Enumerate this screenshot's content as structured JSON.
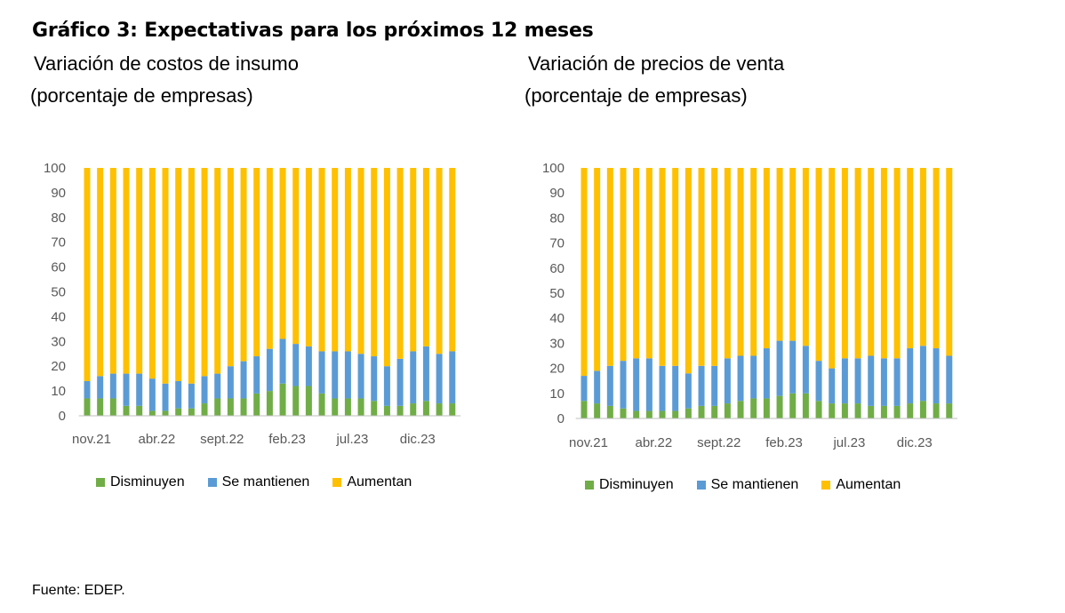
{
  "figure": {
    "title": "Gráfico 3: Expectativas para los próximos 12 meses",
    "source": "Fuente: EDEP."
  },
  "colors": {
    "disminuyen": "#70ad47",
    "se_mantienen": "#5b9bd5",
    "aumentan": "#ffc000",
    "axis": "#bfbfbf"
  },
  "chart_data": [
    {
      "type": "bar",
      "stacked": true,
      "title_line1": "Variación de costos de insumo",
      "title_line2": "(porcentaje de empresas)",
      "xlabel": "",
      "ylabel": "",
      "ylim": [
        0,
        100
      ],
      "yticks": [
        "0",
        "10",
        "20",
        "30",
        "40",
        "50",
        "60",
        "70",
        "80",
        "90",
        "100"
      ],
      "xtick_labels": [
        {
          "index": 0,
          "label": "nov.21"
        },
        {
          "index": 5,
          "label": "abr.22"
        },
        {
          "index": 10,
          "label": "sept.22"
        },
        {
          "index": 15,
          "label": "feb.23"
        },
        {
          "index": 20,
          "label": "jul.23"
        },
        {
          "index": 25,
          "label": "dic.23"
        }
      ],
      "legend": "bottom",
      "series": [
        {
          "name": "Disminuyen",
          "values": [
            7,
            7,
            7,
            4,
            4,
            2,
            2,
            3,
            3,
            5,
            7,
            7,
            7,
            9,
            10,
            13,
            12,
            12,
            9,
            7,
            7,
            7,
            6,
            4,
            4,
            5,
            6,
            5,
            5
          ]
        },
        {
          "name": "Se mantienen",
          "values": [
            7,
            9,
            10,
            13,
            13,
            13,
            11,
            11,
            10,
            11,
            10,
            13,
            15,
            15,
            17,
            18,
            17,
            16,
            17,
            19,
            19,
            18,
            18,
            16,
            19,
            21,
            22,
            20,
            21
          ]
        },
        {
          "name": "Aumentan",
          "values": [
            86,
            84,
            83,
            83,
            83,
            85,
            87,
            86,
            87,
            84,
            83,
            80,
            78,
            76,
            73,
            69,
            71,
            72,
            74,
            74,
            74,
            75,
            76,
            80,
            77,
            74,
            72,
            75,
            74
          ]
        }
      ]
    },
    {
      "type": "bar",
      "stacked": true,
      "title_line1": "Variación de precios de venta",
      "title_line2": "(porcentaje de empresas)",
      "xlabel": "",
      "ylabel": "",
      "ylim": [
        0,
        100
      ],
      "yticks": [
        "0",
        "10",
        "20",
        "30",
        "40",
        "50",
        "60",
        "70",
        "80",
        "90",
        "100"
      ],
      "xtick_labels": [
        {
          "index": 0,
          "label": "nov.21"
        },
        {
          "index": 5,
          "label": "abr.22"
        },
        {
          "index": 10,
          "label": "sept.22"
        },
        {
          "index": 15,
          "label": "feb.23"
        },
        {
          "index": 20,
          "label": "jul.23"
        },
        {
          "index": 25,
          "label": "dic.23"
        }
      ],
      "legend": "bottom",
      "series": [
        {
          "name": "Disminuyen",
          "values": [
            7,
            6,
            5,
            4,
            3,
            3,
            3,
            3,
            4,
            5,
            5,
            6,
            7,
            8,
            8,
            9,
            10,
            10,
            7,
            6,
            6,
            6,
            5,
            5,
            5,
            6,
            7,
            6,
            6
          ]
        },
        {
          "name": "Se mantienen",
          "values": [
            10,
            13,
            16,
            19,
            21,
            21,
            18,
            18,
            14,
            16,
            16,
            18,
            18,
            17,
            20,
            22,
            21,
            19,
            16,
            14,
            18,
            18,
            20,
            19,
            19,
            22,
            22,
            22,
            19
          ]
        },
        {
          "name": "Aumentan",
          "values": [
            83,
            81,
            79,
            77,
            76,
            76,
            79,
            79,
            82,
            79,
            79,
            76,
            75,
            75,
            72,
            69,
            69,
            71,
            77,
            80,
            76,
            76,
            75,
            76,
            76,
            72,
            71,
            72,
            75
          ]
        }
      ]
    }
  ]
}
